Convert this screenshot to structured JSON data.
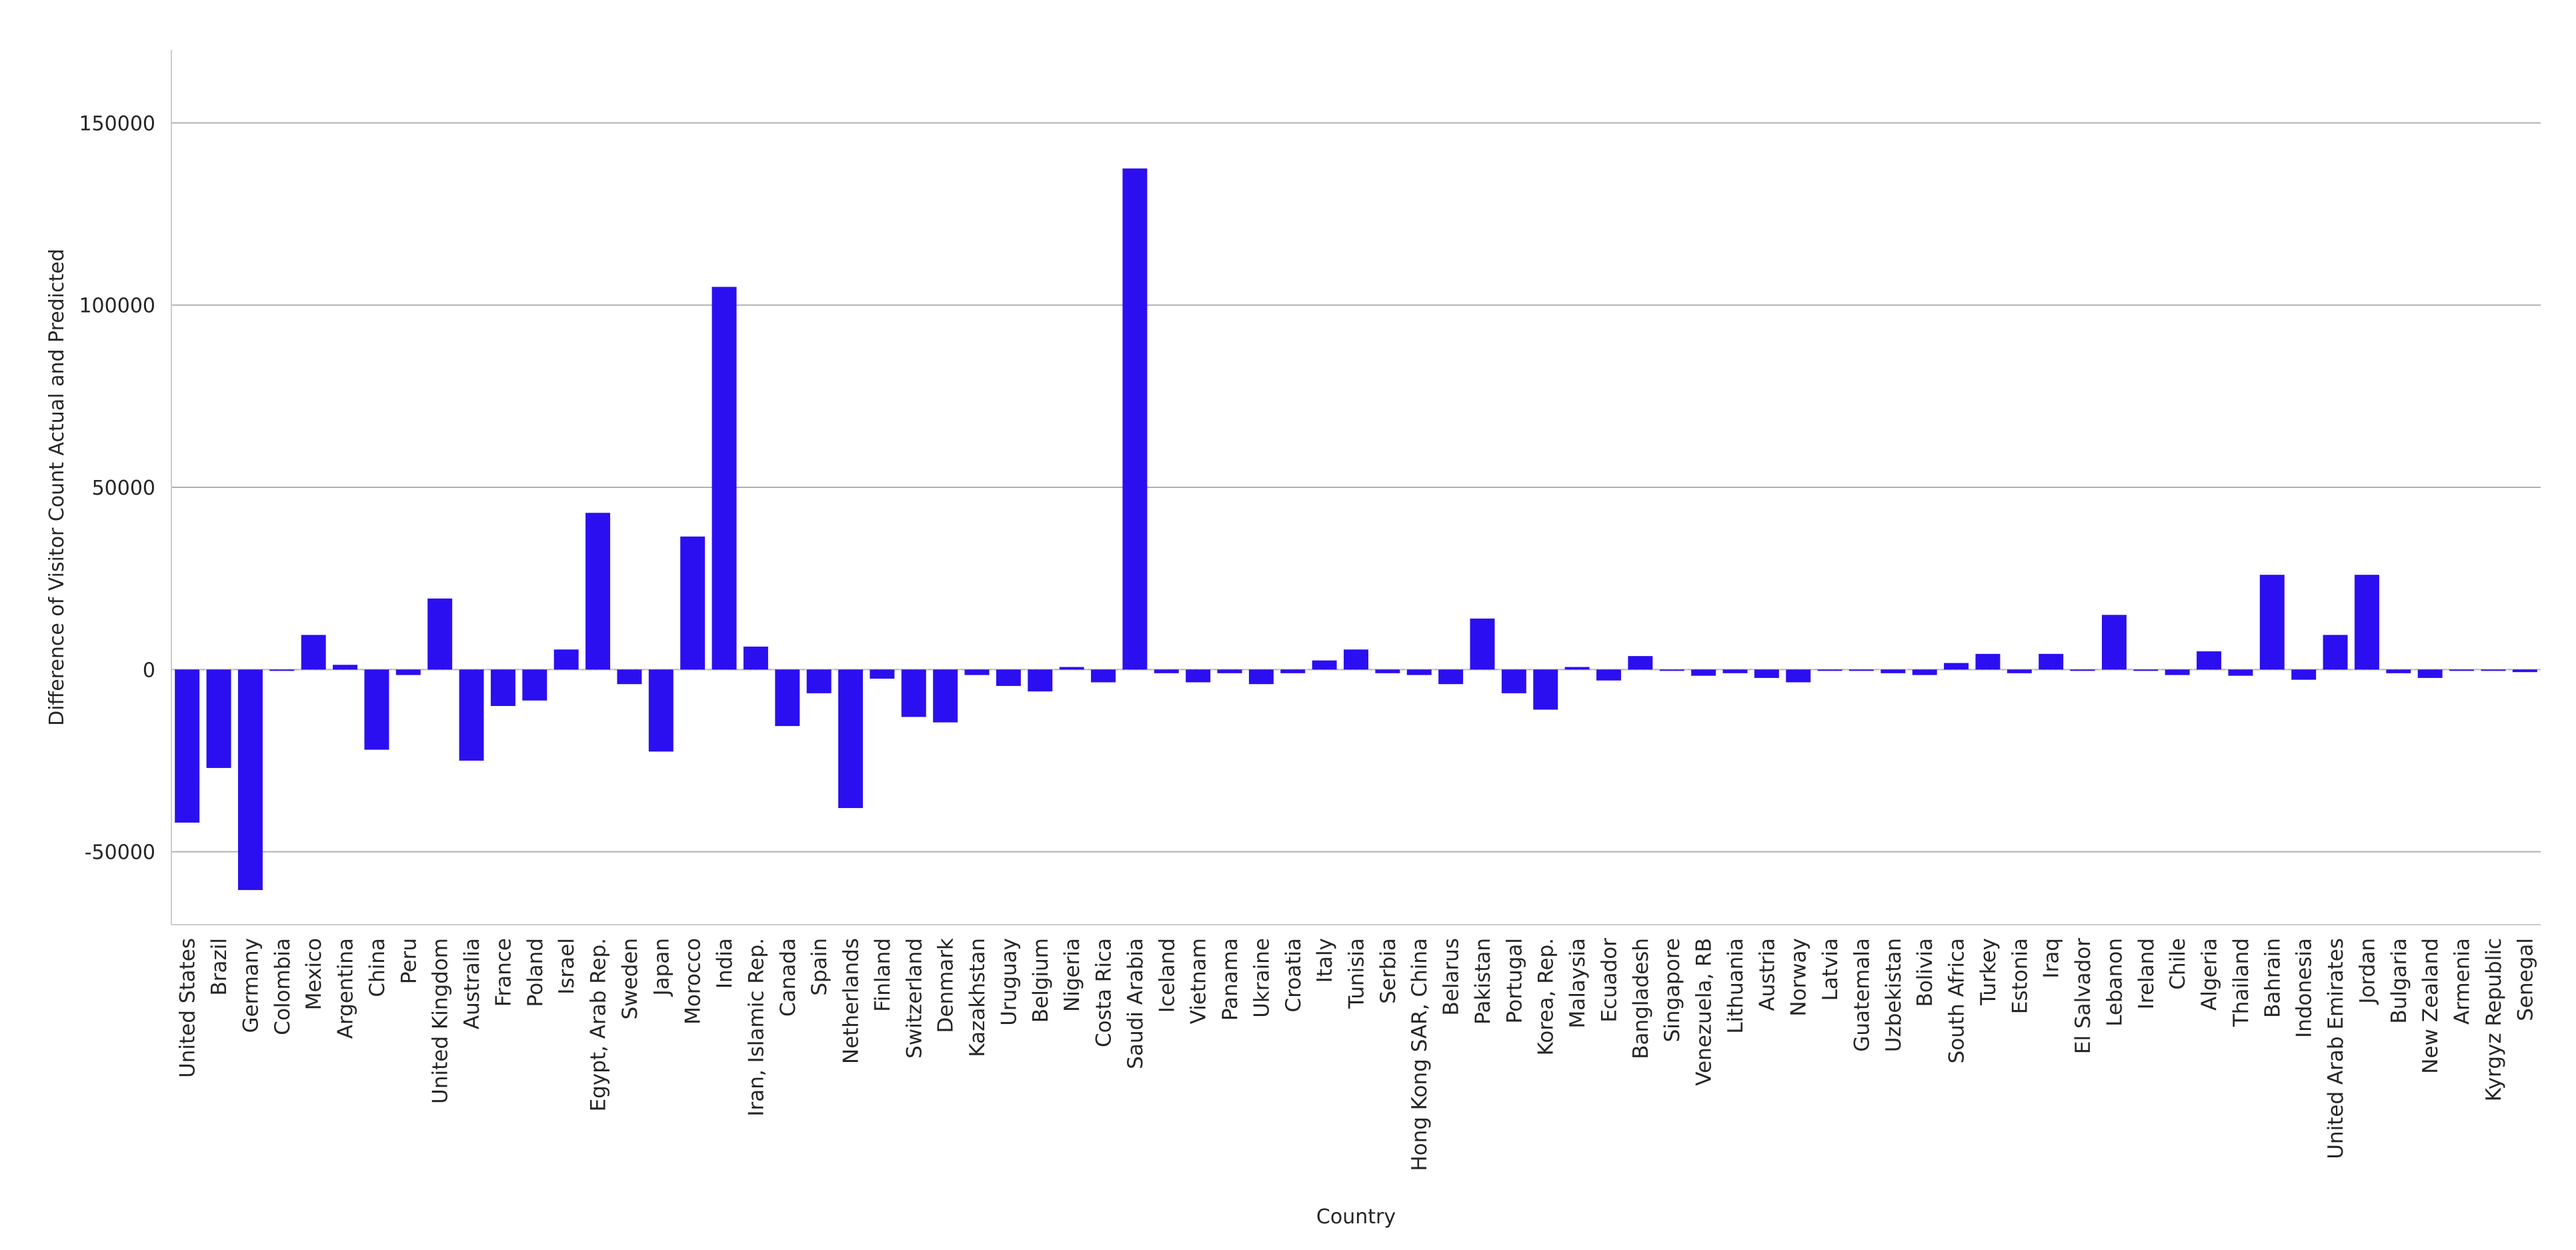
{
  "chart_data": {
    "type": "bar",
    "title": "",
    "xlabel": "Country",
    "ylabel": "Difference of Visitor Count Actual and Predicted",
    "ylim": [
      -70000,
      170000
    ],
    "yticks": [
      -50000,
      0,
      50000,
      100000,
      150000
    ],
    "grid": "horizontal",
    "bar_color": "#2b0ff0",
    "categories": [
      "United States",
      "Brazil",
      "Germany",
      "Colombia",
      "Mexico",
      "Argentina",
      "China",
      "Peru",
      "United Kingdom",
      "Australia",
      "France",
      "Poland",
      "Israel",
      "Egypt, Arab Rep.",
      "Sweden",
      "Japan",
      "Morocco",
      "India",
      "Iran, Islamic Rep.",
      "Canada",
      "Spain",
      "Netherlands",
      "Finland",
      "Switzerland",
      "Denmark",
      "Kazakhstan",
      "Uruguay",
      "Belgium",
      "Nigeria",
      "Costa Rica",
      "Saudi Arabia",
      "Iceland",
      "Vietnam",
      "Panama",
      "Ukraine",
      "Croatia",
      "Italy",
      "Tunisia",
      "Serbia",
      "Hong Kong SAR, China",
      "Belarus",
      "Pakistan",
      "Portugal",
      "Korea, Rep.",
      "Malaysia",
      "Ecuador",
      "Bangladesh",
      "Singapore",
      "Venezuela, RB",
      "Lithuania",
      "Austria",
      "Norway",
      "Latvia",
      "Guatemala",
      "Uzbekistan",
      "Bolivia",
      "South Africa",
      "Turkey",
      "Estonia",
      "Iraq",
      "El Salvador",
      "Lebanon",
      "Ireland",
      "Chile",
      "Algeria",
      "Thailand",
      "Bahrain",
      "Indonesia",
      "United Arab Emirates",
      "Jordan",
      "Bulgaria",
      "New Zealand",
      "Armenia",
      "Kyrgyz Republic",
      "Senegal"
    ],
    "values": [
      -42000,
      -27000,
      -60500,
      -300,
      9500,
      1300,
      -22000,
      -1500,
      19500,
      -25000,
      -10000,
      -8500,
      5500,
      43000,
      -4000,
      -22500,
      36500,
      105000,
      6300,
      -15500,
      -6500,
      -38000,
      -2500,
      -13000,
      -14500,
      -1500,
      -4500,
      -6000,
      700,
      -3500,
      137500,
      -1000,
      -3500,
      -1000,
      -4000,
      -1000,
      2500,
      5500,
      -1000,
      -1500,
      -4000,
      14000,
      -6500,
      -11000,
      700,
      -3000,
      3700,
      -300,
      -1700,
      -1000,
      -2300,
      -3500,
      -300,
      -300,
      -1000,
      -1500,
      1800,
      4300,
      -1000,
      4300,
      -200,
      15000,
      -200,
      -1500,
      5000,
      -1700,
      26000,
      -2800,
      9500,
      26000,
      -1000,
      -2300,
      -300,
      -300,
      -700
    ]
  }
}
